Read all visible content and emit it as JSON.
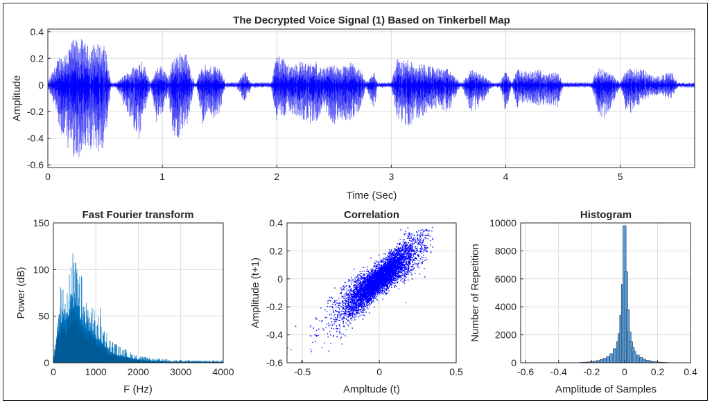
{
  "chart_data": [
    {
      "type": "line",
      "title": "The Decrypted Voice Signal (1) Based on Tinkerbell Map",
      "xlabel": "Time (Sec)",
      "ylabel": "Amplitude",
      "xlim": [
        0,
        5.65
      ],
      "ylim": [
        -0.62,
        0.42
      ],
      "xticks": [
        0,
        1,
        2,
        3,
        4,
        5
      ],
      "yticks": [
        -0.6,
        -0.4,
        -0.2,
        0,
        0.2,
        0.4
      ],
      "grid": true,
      "color": "#0000ff",
      "envelope": {
        "t": [
          0.0,
          0.1,
          0.13,
          0.18,
          0.22,
          0.28,
          0.35,
          0.42,
          0.5,
          0.55,
          0.6,
          0.8,
          0.82,
          0.9,
          0.95,
          1.0,
          1.05,
          1.1,
          1.2,
          1.28,
          1.3,
          1.35,
          1.4,
          1.45,
          1.5,
          1.55,
          1.6,
          1.65,
          1.72,
          1.78,
          1.8,
          1.95,
          2.0,
          2.05,
          2.1,
          2.2,
          2.3,
          2.35,
          2.4,
          2.5,
          2.55,
          2.65,
          2.72,
          2.78,
          2.85,
          2.88,
          2.95,
          3.0,
          3.05,
          3.1,
          3.15,
          3.2,
          3.3,
          3.4,
          3.5,
          3.6,
          3.62,
          3.7,
          3.8,
          3.88,
          3.9,
          3.95,
          4.0,
          4.05,
          4.1,
          4.2,
          4.3,
          4.35,
          4.45,
          4.5,
          4.55,
          4.6,
          4.75,
          4.8,
          4.85,
          4.9,
          4.95,
          5.0,
          5.05,
          5.1,
          5.2,
          5.3,
          5.45,
          5.5,
          5.65
        ],
        "pos": [
          0.02,
          0.22,
          0.22,
          0.3,
          0.34,
          0.36,
          0.3,
          0.32,
          0.3,
          0.02,
          0.02,
          0.18,
          0.2,
          0.02,
          0.12,
          0.16,
          0.05,
          0.22,
          0.26,
          0.02,
          0.02,
          0.18,
          0.12,
          0.16,
          0.14,
          0.02,
          0.02,
          0.02,
          0.1,
          0.02,
          0.02,
          0.02,
          0.24,
          0.22,
          0.15,
          0.18,
          0.16,
          0.18,
          0.12,
          0.16,
          0.12,
          0.18,
          0.13,
          0.02,
          0.1,
          0.02,
          0.02,
          0.02,
          0.2,
          0.18,
          0.2,
          0.17,
          0.16,
          0.13,
          0.12,
          0.02,
          0.02,
          0.12,
          0.08,
          0.02,
          0.02,
          0.02,
          0.12,
          0.02,
          0.12,
          0.1,
          0.12,
          0.09,
          0.1,
          0.02,
          0.02,
          0.02,
          0.02,
          0.13,
          0.12,
          0.1,
          0.06,
          0.02,
          0.13,
          0.12,
          0.12,
          0.06,
          0.1,
          0.02,
          0.02
        ],
        "neg": [
          -0.02,
          -0.3,
          -0.45,
          -0.48,
          -0.55,
          -0.58,
          -0.5,
          -0.52,
          -0.48,
          -0.02,
          -0.02,
          -0.45,
          -0.3,
          -0.02,
          -0.3,
          -0.22,
          -0.08,
          -0.42,
          -0.38,
          -0.02,
          -0.02,
          -0.3,
          -0.2,
          -0.25,
          -0.22,
          -0.02,
          -0.02,
          -0.02,
          -0.14,
          -0.02,
          -0.02,
          -0.02,
          -0.3,
          -0.25,
          -0.2,
          -0.25,
          -0.3,
          -0.27,
          -0.18,
          -0.3,
          -0.26,
          -0.28,
          -0.2,
          -0.02,
          -0.2,
          -0.02,
          -0.02,
          -0.02,
          -0.25,
          -0.3,
          -0.32,
          -0.28,
          -0.22,
          -0.18,
          -0.2,
          -0.02,
          -0.02,
          -0.22,
          -0.14,
          -0.02,
          -0.02,
          -0.02,
          -0.22,
          -0.02,
          -0.18,
          -0.14,
          -0.16,
          -0.15,
          -0.18,
          -0.02,
          -0.02,
          -0.02,
          -0.02,
          -0.2,
          -0.26,
          -0.2,
          -0.12,
          -0.02,
          -0.2,
          -0.22,
          -0.12,
          -0.08,
          -0.1,
          -0.02,
          -0.02
        ]
      }
    },
    {
      "type": "area",
      "title": "Fast Fourier transform",
      "xlabel": "F (Hz)",
      "ylabel": "Power (dB)",
      "xlim": [
        0,
        4000
      ],
      "ylim": [
        0,
        150
      ],
      "xticks": [
        0,
        1000,
        2000,
        3000,
        4000
      ],
      "yticks": [
        0,
        50,
        100,
        150
      ],
      "grid": true,
      "color": "#0072bd",
      "envelope": {
        "x": [
          0,
          50,
          100,
          200,
          300,
          400,
          450,
          500,
          550,
          600,
          650,
          700,
          800,
          900,
          1000,
          1100,
          1200,
          1300,
          1500,
          1700,
          2000,
          2300,
          2600,
          3000,
          3500,
          4000
        ],
        "peak": [
          5,
          35,
          60,
          90,
          95,
          105,
          122,
          110,
          118,
          90,
          100,
          85,
          70,
          72,
          50,
          60,
          45,
          30,
          20,
          15,
          8,
          5,
          4,
          3,
          3,
          3
        ],
        "body": [
          2,
          15,
          30,
          45,
          45,
          55,
          58,
          60,
          55,
          50,
          45,
          40,
          35,
          32,
          25,
          22,
          18,
          12,
          8,
          6,
          3,
          2,
          1.5,
          1,
          1,
          1
        ]
      }
    },
    {
      "type": "scatter",
      "title": "Correlation",
      "xlabel": "Ampltude (t)",
      "ylabel": "Amplitude (t+1)",
      "xlim": [
        -0.6,
        0.5
      ],
      "ylim": [
        -0.6,
        0.4
      ],
      "xticks": [
        -0.5,
        0,
        0.5
      ],
      "yticks": [
        -0.6,
        -0.4,
        -0.2,
        0,
        0.2,
        0.4
      ],
      "grid": true,
      "color": "#0000ff",
      "point_count": 6000
    },
    {
      "type": "bar",
      "title": "Histogram",
      "xlabel": "Amplitude of Samples",
      "ylabel": "Number of Repetition",
      "xlim": [
        -0.63,
        0.4
      ],
      "ylim": [
        0,
        10000
      ],
      "xticks": [
        -0.6,
        -0.4,
        -0.2,
        0,
        0.2,
        0.4
      ],
      "yticks": [
        0,
        2000,
        4000,
        6000,
        8000,
        10000
      ],
      "grid": true,
      "color": "#5b9bd5",
      "bins": {
        "centers": [
          -0.26,
          -0.24,
          -0.22,
          -0.2,
          -0.18,
          -0.16,
          -0.14,
          -0.12,
          -0.1,
          -0.08,
          -0.06,
          -0.04,
          -0.03,
          -0.02,
          -0.01,
          0.0,
          0.01,
          0.02,
          0.03,
          0.04,
          0.05,
          0.06,
          0.08,
          0.1,
          0.12,
          0.14,
          0.16,
          0.18,
          0.2,
          0.22,
          0.24,
          0.26
        ],
        "counts": [
          30,
          40,
          60,
          90,
          120,
          160,
          230,
          320,
          450,
          650,
          1000,
          1500,
          2100,
          3400,
          5600,
          9800,
          6500,
          3800,
          2200,
          1500,
          1100,
          800,
          550,
          380,
          260,
          180,
          130,
          90,
          60,
          40,
          30,
          20
        ]
      }
    }
  ]
}
